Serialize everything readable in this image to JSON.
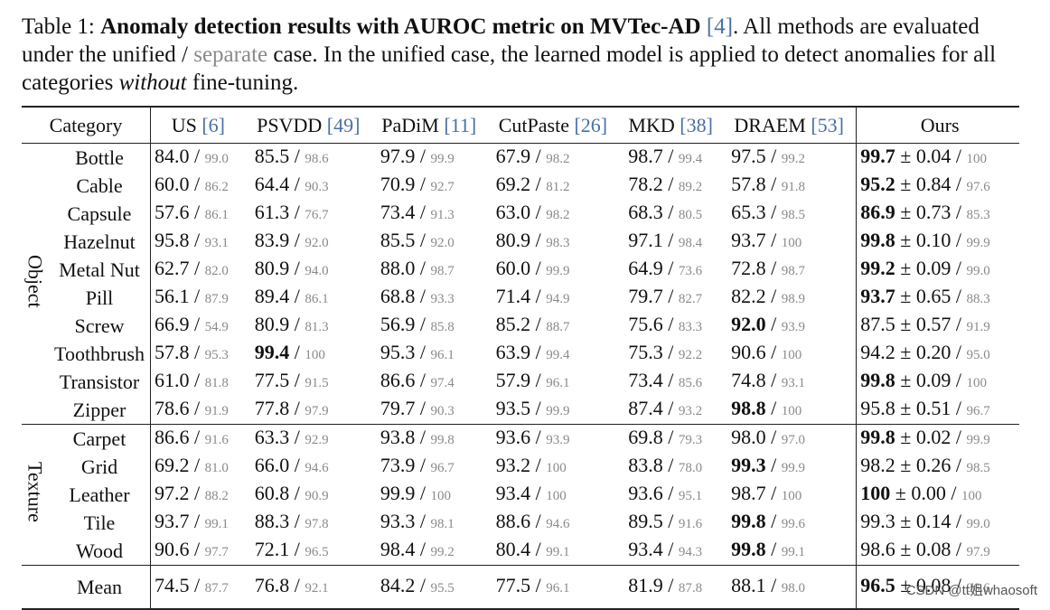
{
  "caption": {
    "label": "Table 1:",
    "title_bold": "Anomaly detection results with AUROC metric on MVTec-AD",
    "title_cite": "[4]",
    "text1": ". All methods are evaluated under the unified /",
    "separate": "separate",
    "text2": "case. In the unified case, the learned model is applied to detect anomalies for all categories",
    "without": "without",
    "text3": "fine-tuning."
  },
  "columns": [
    {
      "name": "US",
      "cite": "[6]"
    },
    {
      "name": "PSVDD",
      "cite": "[49]"
    },
    {
      "name": "PaDiM",
      "cite": "[11]"
    },
    {
      "name": "CutPaste",
      "cite": "[26]"
    },
    {
      "name": "MKD",
      "cite": "[38]"
    },
    {
      "name": "DRAEM",
      "cite": "[53]"
    },
    {
      "name": "Ours",
      "cite": ""
    }
  ],
  "header": {
    "category": "Category"
  },
  "groups": [
    {
      "name": "Object",
      "rows": [
        {
          "category": "Bottle",
          "cells": [
            [
              "84.0",
              "99.0"
            ],
            [
              "85.5",
              "98.6"
            ],
            [
              "97.9",
              "99.9"
            ],
            [
              "67.9",
              "98.2"
            ],
            [
              "98.7",
              "99.4"
            ],
            [
              "97.5",
              "99.2"
            ]
          ],
          "ours": {
            "u": "99.7",
            "pm": "0.04",
            "s": "100",
            "bold": true
          },
          "bold_col": -1
        },
        {
          "category": "Cable",
          "cells": [
            [
              "60.0",
              "86.2"
            ],
            [
              "64.4",
              "90.3"
            ],
            [
              "70.9",
              "92.7"
            ],
            [
              "69.2",
              "81.2"
            ],
            [
              "78.2",
              "89.2"
            ],
            [
              "57.8",
              "91.8"
            ]
          ],
          "ours": {
            "u": "95.2",
            "pm": "0.84",
            "s": "97.6",
            "bold": true
          },
          "bold_col": -1
        },
        {
          "category": "Capsule",
          "cells": [
            [
              "57.6",
              "86.1"
            ],
            [
              "61.3",
              "76.7"
            ],
            [
              "73.4",
              "91.3"
            ],
            [
              "63.0",
              "98.2"
            ],
            [
              "68.3",
              "80.5"
            ],
            [
              "65.3",
              "98.5"
            ]
          ],
          "ours": {
            "u": "86.9",
            "pm": "0.73",
            "s": "85.3",
            "bold": true
          },
          "bold_col": -1
        },
        {
          "category": "Hazelnut",
          "cells": [
            [
              "95.8",
              "93.1"
            ],
            [
              "83.9",
              "92.0"
            ],
            [
              "85.5",
              "92.0"
            ],
            [
              "80.9",
              "98.3"
            ],
            [
              "97.1",
              "98.4"
            ],
            [
              "93.7",
              "100"
            ]
          ],
          "ours": {
            "u": "99.8",
            "pm": "0.10",
            "s": "99.9",
            "bold": true
          },
          "bold_col": -1
        },
        {
          "category": "Metal Nut",
          "cells": [
            [
              "62.7",
              "82.0"
            ],
            [
              "80.9",
              "94.0"
            ],
            [
              "88.0",
              "98.7"
            ],
            [
              "60.0",
              "99.9"
            ],
            [
              "64.9",
              "73.6"
            ],
            [
              "72.8",
              "98.7"
            ]
          ],
          "ours": {
            "u": "99.2",
            "pm": "0.09",
            "s": "99.0",
            "bold": true
          },
          "bold_col": -1
        },
        {
          "category": "Pill",
          "cells": [
            [
              "56.1",
              "87.9"
            ],
            [
              "89.4",
              "86.1"
            ],
            [
              "68.8",
              "93.3"
            ],
            [
              "71.4",
              "94.9"
            ],
            [
              "79.7",
              "82.7"
            ],
            [
              "82.2",
              "98.9"
            ]
          ],
          "ours": {
            "u": "93.7",
            "pm": "0.65",
            "s": "88.3",
            "bold": true
          },
          "bold_col": -1
        },
        {
          "category": "Screw",
          "cells": [
            [
              "66.9",
              "54.9"
            ],
            [
              "80.9",
              "81.3"
            ],
            [
              "56.9",
              "85.8"
            ],
            [
              "85.2",
              "88.7"
            ],
            [
              "75.6",
              "83.3"
            ],
            [
              "92.0",
              "93.9"
            ]
          ],
          "ours": {
            "u": "87.5",
            "pm": "0.57",
            "s": "91.9",
            "bold": false
          },
          "bold_col": 5
        },
        {
          "category": "Toothbrush",
          "cells": [
            [
              "57.8",
              "95.3"
            ],
            [
              "99.4",
              "100"
            ],
            [
              "95.3",
              "96.1"
            ],
            [
              "63.9",
              "99.4"
            ],
            [
              "75.3",
              "92.2"
            ],
            [
              "90.6",
              "100"
            ]
          ],
          "ours": {
            "u": "94.2",
            "pm": "0.20",
            "s": "95.0",
            "bold": false
          },
          "bold_col": 1
        },
        {
          "category": "Transistor",
          "cells": [
            [
              "61.0",
              "81.8"
            ],
            [
              "77.5",
              "91.5"
            ],
            [
              "86.6",
              "97.4"
            ],
            [
              "57.9",
              "96.1"
            ],
            [
              "73.4",
              "85.6"
            ],
            [
              "74.8",
              "93.1"
            ]
          ],
          "ours": {
            "u": "99.8",
            "pm": "0.09",
            "s": "100",
            "bold": true
          },
          "bold_col": -1
        },
        {
          "category": "Zipper",
          "cells": [
            [
              "78.6",
              "91.9"
            ],
            [
              "77.8",
              "97.9"
            ],
            [
              "79.7",
              "90.3"
            ],
            [
              "93.5",
              "99.9"
            ],
            [
              "87.4",
              "93.2"
            ],
            [
              "98.8",
              "100"
            ]
          ],
          "ours": {
            "u": "95.8",
            "pm": "0.51",
            "s": "96.7",
            "bold": false
          },
          "bold_col": 5
        }
      ]
    },
    {
      "name": "Texture",
      "rows": [
        {
          "category": "Carpet",
          "cells": [
            [
              "86.6",
              "91.6"
            ],
            [
              "63.3",
              "92.9"
            ],
            [
              "93.8",
              "99.8"
            ],
            [
              "93.6",
              "93.9"
            ],
            [
              "69.8",
              "79.3"
            ],
            [
              "98.0",
              "97.0"
            ]
          ],
          "ours": {
            "u": "99.8",
            "pm": "0.02",
            "s": "99.9",
            "bold": true
          },
          "bold_col": -1
        },
        {
          "category": "Grid",
          "cells": [
            [
              "69.2",
              "81.0"
            ],
            [
              "66.0",
              "94.6"
            ],
            [
              "73.9",
              "96.7"
            ],
            [
              "93.2",
              "100"
            ],
            [
              "83.8",
              "78.0"
            ],
            [
              "99.3",
              "99.9"
            ]
          ],
          "ours": {
            "u": "98.2",
            "pm": "0.26",
            "s": "98.5",
            "bold": false
          },
          "bold_col": 5
        },
        {
          "category": "Leather",
          "cells": [
            [
              "97.2",
              "88.2"
            ],
            [
              "60.8",
              "90.9"
            ],
            [
              "99.9",
              "100"
            ],
            [
              "93.4",
              "100"
            ],
            [
              "93.6",
              "95.1"
            ],
            [
              "98.7",
              "100"
            ]
          ],
          "ours": {
            "u": "100",
            "pm": "0.00",
            "s": "100",
            "bold": true
          },
          "bold_col": -1
        },
        {
          "category": "Tile",
          "cells": [
            [
              "93.7",
              "99.1"
            ],
            [
              "88.3",
              "97.8"
            ],
            [
              "93.3",
              "98.1"
            ],
            [
              "88.6",
              "94.6"
            ],
            [
              "89.5",
              "91.6"
            ],
            [
              "99.8",
              "99.6"
            ]
          ],
          "ours": {
            "u": "99.3",
            "pm": "0.14",
            "s": "99.0",
            "bold": false
          },
          "bold_col": 5
        },
        {
          "category": "Wood",
          "cells": [
            [
              "90.6",
              "97.7"
            ],
            [
              "72.1",
              "96.5"
            ],
            [
              "98.4",
              "99.2"
            ],
            [
              "80.4",
              "99.1"
            ],
            [
              "93.4",
              "94.3"
            ],
            [
              "99.8",
              "99.1"
            ]
          ],
          "ours": {
            "u": "98.6",
            "pm": "0.08",
            "s": "97.9",
            "bold": false
          },
          "bold_col": 5
        }
      ]
    }
  ],
  "mean": {
    "category": "Mean",
    "cells": [
      [
        "74.5",
        "87.7"
      ],
      [
        "76.8",
        "92.1"
      ],
      [
        "84.2",
        "95.5"
      ],
      [
        "77.5",
        "96.1"
      ],
      [
        "81.9",
        "87.8"
      ],
      [
        "88.1",
        "98.0"
      ]
    ],
    "ours": {
      "u": "96.5",
      "pm": "0.08",
      "s": "96.6",
      "bold": true
    },
    "bold_col": -1
  },
  "watermark": "CSDN @tt姐whaosoft"
}
